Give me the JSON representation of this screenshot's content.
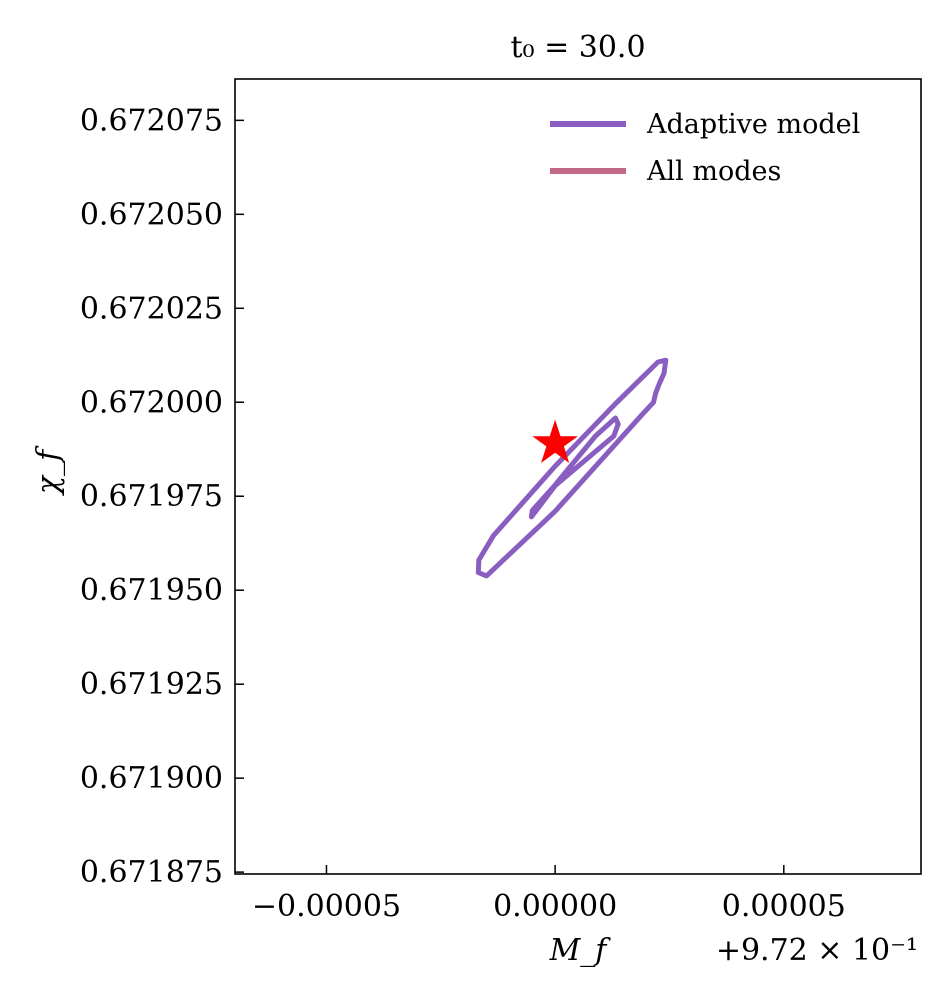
{
  "chart_data": {
    "type": "contour",
    "title": "t₀ = 30.0",
    "xlabel": "M_f",
    "ylabel": "χ_f",
    "x_offset_label": "+9.72 × 10⁻¹",
    "x_offset": 0.972,
    "xlim": [
      -7e-05,
      8e-05
    ],
    "ylim": [
      0.6718745,
      0.672086
    ],
    "x_ticks": [
      -5e-05,
      0.0,
      5e-05
    ],
    "x_tick_labels": [
      "−0.00005",
      "0.00000",
      "0.00005"
    ],
    "y_ticks": [
      0.671875,
      0.6719,
      0.671925,
      0.67195,
      0.671975,
      0.672,
      0.672025,
      0.67205,
      0.672075
    ],
    "y_tick_labels": [
      "0.671875",
      "0.671900",
      "0.671925",
      "0.671950",
      "0.671975",
      "0.672000",
      "0.672025",
      "0.672050",
      "0.672075"
    ],
    "legend": {
      "placement": "top-right",
      "entries": [
        {
          "label": "Adaptive model",
          "color": "#8a5ec0"
        },
        {
          "label": "All modes",
          "color": "#c2698a"
        }
      ]
    },
    "series": [
      {
        "name": "Adaptive model",
        "color": "#8a5ec0",
        "contours": [
          {
            "level": "outer",
            "points": [
              [
                -1.68e-05,
                0.6719547
              ],
              [
                -1.67e-05,
                0.671958
              ],
              [
                -1.35e-05,
                0.6719645
              ],
              [
                0.0,
                0.671983
              ],
              [
                1.35e-05,
                0.672
              ],
              [
                2.25e-05,
                0.6720107
              ],
              [
                2.42e-05,
                0.6720112
              ],
              [
                2.38e-05,
                0.6720077
              ],
              [
                2.28e-05,
                0.672005
              ],
              [
                2.2e-05,
                0.6720025
              ],
              [
                2.15e-05,
                0.672
              ],
              [
                1.9e-05,
                0.6719967
              ],
              [
                0.0,
                0.671971
              ],
              [
                -1.5e-05,
                0.6719538
              ],
              [
                -1.68e-05,
                0.6719547
              ]
            ]
          },
          {
            "level": "inner",
            "points": [
              [
                -5.2e-06,
                0.6719695
              ],
              [
                -5e-06,
                0.6719712
              ],
              [
                0.0,
                0.671978
              ],
              [
                8.8e-06,
                0.671991
              ],
              [
                1.32e-05,
                0.6719958
              ],
              [
                1.38e-05,
                0.6719942
              ],
              [
                1.28e-05,
                0.671991
              ],
              [
                0.0,
                0.6719778
              ],
              [
                -5.2e-06,
                0.6719695
              ]
            ]
          }
        ]
      },
      {
        "name": "All modes",
        "color": "#c2698a",
        "contours": []
      }
    ],
    "markers": [
      {
        "shape": "star",
        "color": "#ff0000",
        "x": 0.0,
        "y": 0.671989
      }
    ],
    "grid": false
  }
}
